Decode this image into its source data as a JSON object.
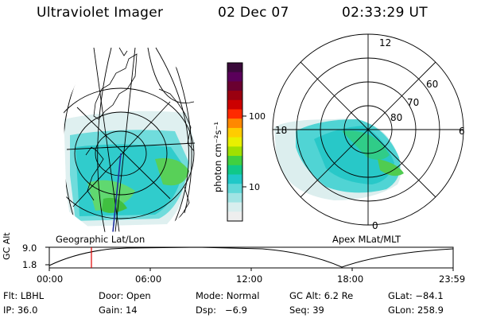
{
  "header": {
    "instrument": "Ultraviolet Imager",
    "date": "02 Dec 07",
    "time": "02:33:29 UT"
  },
  "colorbar": {
    "unit_label": "photon cm⁻²s⁻¹",
    "ticks": [
      "100",
      "10"
    ],
    "colors": [
      "#3a0a3a",
      "#5a005a",
      "#6a0030",
      "#9a0010",
      "#cc0000",
      "#ff2a00",
      "#ff8800",
      "#ffcc00",
      "#e8f000",
      "#a0e000",
      "#40d040",
      "#10c888",
      "#20c8c8",
      "#60d8d8",
      "#a0e4e4",
      "#d8eeee",
      "#eeeeee"
    ]
  },
  "geo_panel": {
    "caption": "Geographic Lat/Lon"
  },
  "polar_panel": {
    "caption": "Apex MLat/MLT",
    "mlt_labels": {
      "top": "12",
      "right": "6",
      "bottom": "0",
      "left": "18"
    },
    "lat_labels": [
      "60",
      "70",
      "80"
    ]
  },
  "altitude_plot": {
    "ylabel": "GC Alt",
    "yticks": [
      "9.0",
      "1.8"
    ],
    "xticks": [
      "00:00",
      "06:00",
      "12:00",
      "18:00",
      "23:59"
    ],
    "marker_time": "02:33"
  },
  "status": {
    "row1": {
      "flt": "Flt: LBHL",
      "door": "Door: Open",
      "mode": "Mode: Normal",
      "gc_alt": "GC Alt: 6.2 Re",
      "glat": "GLat: −84.1"
    },
    "row2": {
      "ip": "IP: 36.0",
      "gain": "Gain: 14",
      "dsp": "Dsp:   −6.9",
      "seq": "Seq: 39",
      "glon": "GLon: 258.9"
    }
  }
}
